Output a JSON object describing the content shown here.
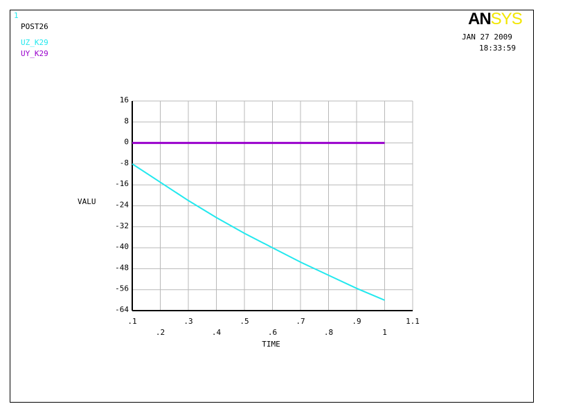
{
  "window_number": "1",
  "header": {
    "program": "POST26",
    "date": "JAN 27 2009",
    "time": "18:33:59"
  },
  "logo": {
    "part1": "AN",
    "part2": "SYS"
  },
  "colors": {
    "uz": "#22e8ee",
    "uy": "#9900cc",
    "window_number": "#22e8ee",
    "grid": "#b8b8b8"
  },
  "chart_data": {
    "type": "line",
    "xlabel": "TIME",
    "ylabel": "VALU",
    "xlim": [
      0.1,
      1.1
    ],
    "ylim": [
      -64,
      16
    ],
    "x_ticks": [
      ".1",
      ".2",
      ".3",
      ".4",
      ".5",
      ".6",
      ".7",
      ".8",
      ".9",
      "1",
      "1.1"
    ],
    "y_ticks": [
      "16",
      "8",
      "0",
      "-8",
      "-16",
      "-24",
      "-32",
      "-40",
      "-48",
      "-56",
      "-64"
    ],
    "grid": true,
    "legend_placement": "top-left",
    "series": [
      {
        "name": "UZ_K29",
        "x": [
          0.1,
          0.2,
          0.3,
          0.4,
          0.5,
          0.6,
          0.7,
          0.8,
          0.9,
          1.0
        ],
        "values": [
          -8,
          -15,
          -22,
          -28.5,
          -34.5,
          -40,
          -45.5,
          -50.5,
          -55.5,
          -60
        ]
      },
      {
        "name": "UY_K29",
        "x": [
          0.1,
          1.0
        ],
        "values": [
          0,
          0
        ]
      }
    ]
  }
}
